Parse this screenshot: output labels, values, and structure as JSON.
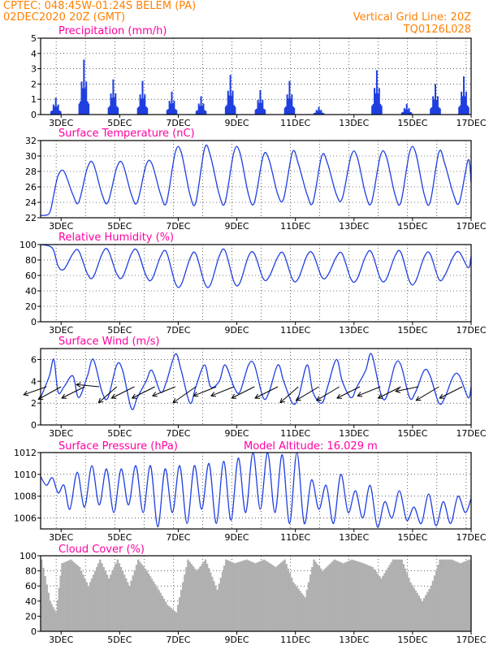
{
  "header": {
    "line1_left": "CPTEC:   048:45W-01:24S   BELEM (PA)",
    "line2_left": "02DEC2020 20Z (GMT)",
    "line1_right": "Vertical Grid Line: 20Z",
    "line2_right": "TQ0126L028"
  },
  "colors": {
    "header": "#ff8000",
    "panel_title": "#ff00a0",
    "series": "#1f3fe0",
    "cloud": "#b0b0b0",
    "wind_arrow": "#000000",
    "grid": "#000000"
  },
  "x_tick_labels": [
    "3DEC",
    "5DEC",
    "7DEC",
    "9DEC",
    "11DEC",
    "13DEC",
    "15DEC",
    "17DEC"
  ],
  "panels": {
    "precip": {
      "title": "Precipitation (mm/h)"
    },
    "temp": {
      "title": "Surface Temperature (nC)"
    },
    "rh": {
      "title": "Relative Humidity (%)"
    },
    "wind": {
      "title": "Surface Wind (m/s)"
    },
    "pres": {
      "title": "Surface Pressure (hPa)",
      "extra": "Model Altitude: 16.029 m"
    },
    "cloud": {
      "title": "Cloud Cover (%)"
    }
  },
  "chart_data": [
    {
      "id": "precip",
      "type": "bar",
      "title": "Precipitation (mm/h)",
      "x_range": [
        2.3,
        17.0
      ],
      "ylim": [
        0,
        5
      ],
      "yticks": [
        0,
        1,
        2,
        3,
        4,
        5
      ],
      "events": [
        {
          "day": 2.82,
          "peak": 1.1
        },
        {
          "day": 3.78,
          "peak": 3.6
        },
        {
          "day": 4.78,
          "peak": 2.3
        },
        {
          "day": 5.78,
          "peak": 2.2
        },
        {
          "day": 6.78,
          "peak": 1.5
        },
        {
          "day": 7.78,
          "peak": 1.2
        },
        {
          "day": 8.78,
          "peak": 2.6
        },
        {
          "day": 9.8,
          "peak": 1.6
        },
        {
          "day": 10.8,
          "peak": 2.2
        },
        {
          "day": 11.8,
          "peak": 0.5
        },
        {
          "day": 13.78,
          "peak": 2.9
        },
        {
          "day": 14.8,
          "peak": 0.7
        },
        {
          "day": 15.78,
          "peak": 2.0
        },
        {
          "day": 16.75,
          "peak": 2.5
        }
      ]
    },
    {
      "id": "temp",
      "type": "line",
      "title": "Surface Temperature (nC)",
      "x_range": [
        2.3,
        17.0
      ],
      "ylim": [
        22,
        32
      ],
      "yticks": [
        22,
        24,
        26,
        28,
        30,
        32
      ],
      "x": [
        2.3,
        2.6,
        2.75,
        2.9,
        3.1,
        3.4,
        3.6,
        3.9,
        4.1,
        4.4,
        4.6,
        4.9,
        5.1,
        5.4,
        5.6,
        5.9,
        6.1,
        6.4,
        6.6,
        6.9,
        7.1,
        7.4,
        7.6,
        7.9,
        8.1,
        8.4,
        8.6,
        8.9,
        9.1,
        9.4,
        9.6,
        9.9,
        10.1,
        10.4,
        10.6,
        10.9,
        11.1,
        11.4,
        11.6,
        11.9,
        12.1,
        12.4,
        12.6,
        12.9,
        13.1,
        13.4,
        13.6,
        13.9,
        14.1,
        14.4,
        14.6,
        14.9,
        15.1,
        15.4,
        15.6,
        15.9,
        16.1,
        16.4,
        16.6,
        16.9,
        17.0
      ],
      "values": [
        22.3,
        22.6,
        25.0,
        27.5,
        28.0,
        25.0,
        24.0,
        28.5,
        29.0,
        25.0,
        24.0,
        28.5,
        29.0,
        25.0,
        24.0,
        28.8,
        29.0,
        25.0,
        24.0,
        30.5,
        30.5,
        25.0,
        24.0,
        31.0,
        30.0,
        25.0,
        24.0,
        30.5,
        30.5,
        25.0,
        24.0,
        30.0,
        29.5,
        25.0,
        24.5,
        30.5,
        29.0,
        25.0,
        24.0,
        30.0,
        29.0,
        25.0,
        24.5,
        30.0,
        30.0,
        25.0,
        24.0,
        30.0,
        30.0,
        25.0,
        24.0,
        30.5,
        30.5,
        25.0,
        24.0,
        30.5,
        29.0,
        25.0,
        24.0,
        29.5,
        26.5
      ]
    },
    {
      "id": "rh",
      "type": "line",
      "title": "Relative Humidity (%)",
      "x_range": [
        2.3,
        17.0
      ],
      "ylim": [
        0,
        100
      ],
      "yticks": [
        0,
        20,
        40,
        60,
        80,
        100
      ],
      "x": [
        2.3,
        2.6,
        2.75,
        2.9,
        3.1,
        3.4,
        3.6,
        3.9,
        4.1,
        4.4,
        4.6,
        4.9,
        5.1,
        5.4,
        5.6,
        5.9,
        6.1,
        6.4,
        6.6,
        6.9,
        7.1,
        7.4,
        7.6,
        7.9,
        8.1,
        8.4,
        8.6,
        8.9,
        9.1,
        9.4,
        9.6,
        9.9,
        10.1,
        10.4,
        10.6,
        10.9,
        11.1,
        11.4,
        11.6,
        11.9,
        12.1,
        12.4,
        12.6,
        12.9,
        13.1,
        13.4,
        13.6,
        13.9,
        14.1,
        14.4,
        14.6,
        14.9,
        15.1,
        15.4,
        15.6,
        15.9,
        16.1,
        16.4,
        16.6,
        16.9,
        17.0
      ],
      "values": [
        100,
        98,
        92,
        72,
        68,
        88,
        92,
        62,
        58,
        88,
        93,
        62,
        58,
        88,
        92,
        60,
        55,
        85,
        90,
        50,
        48,
        82,
        88,
        50,
        48,
        85,
        92,
        52,
        50,
        85,
        88,
        56,
        58,
        84,
        88,
        55,
        56,
        86,
        88,
        58,
        60,
        84,
        88,
        55,
        55,
        85,
        90,
        56,
        55,
        85,
        90,
        52,
        52,
        84,
        88,
        55,
        60,
        85,
        90,
        70,
        85
      ]
    },
    {
      "id": "wind",
      "type": "line",
      "title": "Surface Wind (m/s)",
      "x_range": [
        2.3,
        17.0
      ],
      "ylim": [
        0,
        7
      ],
      "yticks": [
        0,
        2,
        4,
        6
      ],
      "x": [
        2.3,
        2.6,
        2.75,
        2.9,
        3.1,
        3.4,
        3.6,
        3.9,
        4.1,
        4.4,
        4.6,
        4.9,
        5.1,
        5.4,
        5.6,
        5.9,
        6.1,
        6.4,
        6.6,
        6.9,
        7.1,
        7.4,
        7.6,
        7.9,
        8.1,
        8.4,
        8.6,
        8.9,
        9.1,
        9.4,
        9.6,
        9.9,
        10.1,
        10.4,
        10.6,
        10.9,
        11.1,
        11.4,
        11.6,
        11.9,
        12.1,
        12.4,
        12.6,
        12.9,
        13.1,
        13.4,
        13.6,
        13.9,
        14.1,
        14.4,
        14.6,
        14.9,
        15.1,
        15.4,
        15.6,
        15.9,
        16.1,
        16.4,
        16.6,
        16.9,
        17.0
      ],
      "values": [
        2.5,
        4.5,
        6.0,
        3.0,
        3.5,
        4.5,
        2.5,
        4.5,
        6.0,
        3.0,
        2.5,
        5.5,
        5.0,
        1.5,
        2.5,
        4.0,
        5.0,
        3.0,
        4.0,
        6.5,
        5.0,
        2.0,
        3.5,
        5.5,
        3.5,
        4.0,
        5.5,
        3.5,
        3.0,
        5.5,
        5.5,
        2.5,
        3.0,
        5.5,
        4.0,
        2.0,
        2.5,
        5.5,
        3.0,
        2.0,
        3.5,
        6.0,
        4.0,
        2.5,
        3.5,
        5.0,
        6.5,
        3.0,
        2.5,
        5.5,
        5.5,
        2.5,
        3.0,
        5.0,
        4.5,
        2.0,
        2.5,
        4.5,
        4.5,
        2.5,
        3.5
      ],
      "arrows": [
        {
          "day": 2.5,
          "dx": -1,
          "dy": 0.35
        },
        {
          "day": 3.0,
          "dx": -1,
          "dy": 0.55
        },
        {
          "day": 3.8,
          "dx": -1,
          "dy": 0.5
        },
        {
          "day": 4.3,
          "dx": -1,
          "dy": -0.1
        },
        {
          "day": 4.9,
          "dx": -0.8,
          "dy": 0.7
        },
        {
          "day": 5.5,
          "dx": -1,
          "dy": 0.5
        },
        {
          "day": 6.2,
          "dx": -1,
          "dy": 0.5
        },
        {
          "day": 6.9,
          "dx": -1,
          "dy": 0.4
        },
        {
          "day": 7.6,
          "dx": -1,
          "dy": 0.7
        },
        {
          "day": 8.3,
          "dx": -1,
          "dy": 0.4
        },
        {
          "day": 8.9,
          "dx": -1,
          "dy": 0.4
        },
        {
          "day": 9.6,
          "dx": -1,
          "dy": 0.5
        },
        {
          "day": 10.4,
          "dx": -1,
          "dy": 0.5
        },
        {
          "day": 11.1,
          "dx": -0.8,
          "dy": 0.7
        },
        {
          "day": 11.8,
          "dx": -1,
          "dy": 0.6
        },
        {
          "day": 12.5,
          "dx": -1,
          "dy": 0.6
        },
        {
          "day": 13.2,
          "dx": -1,
          "dy": 0.5
        },
        {
          "day": 13.9,
          "dx": -1,
          "dy": 0.4
        },
        {
          "day": 14.6,
          "dx": -1,
          "dy": 0.5
        },
        {
          "day": 15.2,
          "dx": -1,
          "dy": 0.2
        },
        {
          "day": 15.9,
          "dx": -1,
          "dy": 0.6
        },
        {
          "day": 16.7,
          "dx": -1,
          "dy": 0.5
        }
      ]
    },
    {
      "id": "pres",
      "type": "line",
      "title": "Surface Pressure (hPa)",
      "annotation": "Model Altitude: 16.029 m",
      "x_range": [
        2.3,
        17.0
      ],
      "ylim": [
        1005,
        1012
      ],
      "yticks": [
        1006,
        1008,
        1010,
        1012
      ],
      "x": [
        2.3,
        2.5,
        2.7,
        2.9,
        3.1,
        3.3,
        3.55,
        3.8,
        4.05,
        4.3,
        4.55,
        4.8,
        5.05,
        5.3,
        5.55,
        5.8,
        6.05,
        6.3,
        6.55,
        6.8,
        7.05,
        7.3,
        7.55,
        7.8,
        8.05,
        8.3,
        8.55,
        8.8,
        9.05,
        9.3,
        9.55,
        9.8,
        10.05,
        10.3,
        10.55,
        10.8,
        11.05,
        11.3,
        11.55,
        11.8,
        12.05,
        12.3,
        12.55,
        12.8,
        13.05,
        13.3,
        13.55,
        13.8,
        14.05,
        14.3,
        14.55,
        14.8,
        15.05,
        15.3,
        15.55,
        15.8,
        16.05,
        16.3,
        16.55,
        16.8,
        17.0
      ],
      "values": [
        1009.8,
        1009.0,
        1009.7,
        1008.3,
        1009.0,
        1006.8,
        1010.2,
        1007.0,
        1010.8,
        1007.2,
        1010.5,
        1006.5,
        1010.5,
        1007.2,
        1010.8,
        1006.5,
        1010.8,
        1005.2,
        1010.5,
        1006.5,
        1010.8,
        1005.5,
        1010.8,
        1006.8,
        1011.0,
        1005.5,
        1011.2,
        1005.8,
        1011.5,
        1006.5,
        1012.0,
        1006.8,
        1012.0,
        1006.5,
        1011.8,
        1005.5,
        1012.0,
        1005.5,
        1009.5,
        1006.8,
        1009.0,
        1005.5,
        1010.0,
        1006.5,
        1008.5,
        1006.0,
        1009.0,
        1005.2,
        1007.5,
        1006.0,
        1008.5,
        1005.8,
        1007.0,
        1005.5,
        1008.2,
        1005.3,
        1007.5,
        1005.5,
        1008.0,
        1006.5,
        1007.8
      ]
    },
    {
      "id": "cloud",
      "type": "bar",
      "title": "Cloud Cover (%)",
      "x_range": [
        2.3,
        17.0
      ],
      "ylim": [
        0,
        100
      ],
      "yticks": [
        0,
        20,
        40,
        60,
        80,
        100
      ],
      "x": [
        2.3,
        2.6,
        2.8,
        3.0,
        3.3,
        3.6,
        3.9,
        4.3,
        4.6,
        4.9,
        5.3,
        5.6,
        5.9,
        6.3,
        6.6,
        6.9,
        7.3,
        7.6,
        7.9,
        8.3,
        8.6,
        8.9,
        9.3,
        9.6,
        9.9,
        10.3,
        10.6,
        10.9,
        11.3,
        11.6,
        11.9,
        12.3,
        12.6,
        12.9,
        13.3,
        13.6,
        13.9,
        14.3,
        14.6,
        14.9,
        15.3,
        15.6,
        15.9,
        16.3,
        16.6,
        16.9,
        17.0
      ],
      "values": [
        95,
        40,
        25,
        90,
        95,
        85,
        60,
        95,
        70,
        95,
        60,
        95,
        80,
        55,
        35,
        25,
        95,
        80,
        95,
        55,
        95,
        90,
        95,
        90,
        95,
        85,
        95,
        65,
        45,
        95,
        80,
        95,
        90,
        95,
        90,
        85,
        70,
        95,
        95,
        65,
        40,
        60,
        95,
        95,
        90,
        95,
        95
      ]
    }
  ]
}
